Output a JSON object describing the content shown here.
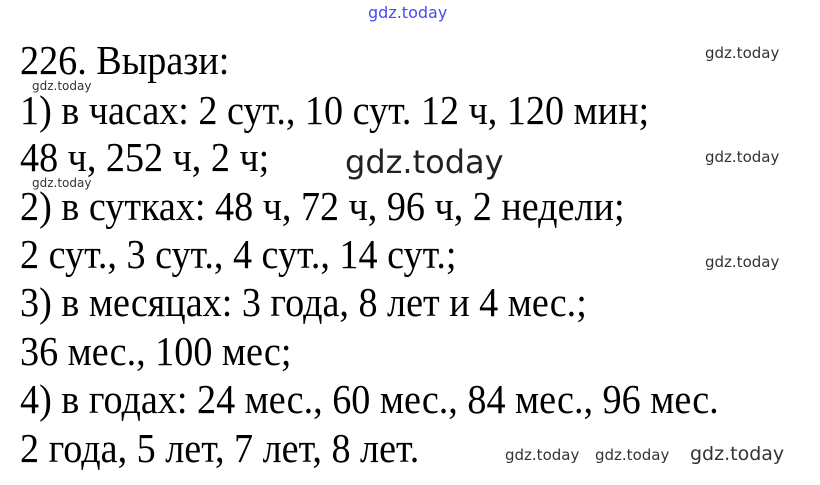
{
  "watermark": "gdz.today",
  "lines": [
    "226. Вырази:",
    "1) в часах: 2 сут., 10 сут. 12 ч, 120 мин;",
    "48 ч, 252 ч, 2 ч;",
    "2) в сутках: 48 ч, 72 ч, 96 ч, 2 недели;",
    "2 сут., 3 сут., 4 сут., 14 сут.;",
    "3) в месяцах: 3 года, 8 лет и 4 мес.;",
    "36 мес., 100 мес;",
    "4) в годах: 24 мес., 60 мес., 84 мес., 96 мес.",
    "2 года, 5 лет, 7 лет, 8 лет."
  ],
  "colors": {
    "text": "#000000",
    "watermark_top": "#4a4af0"
  }
}
